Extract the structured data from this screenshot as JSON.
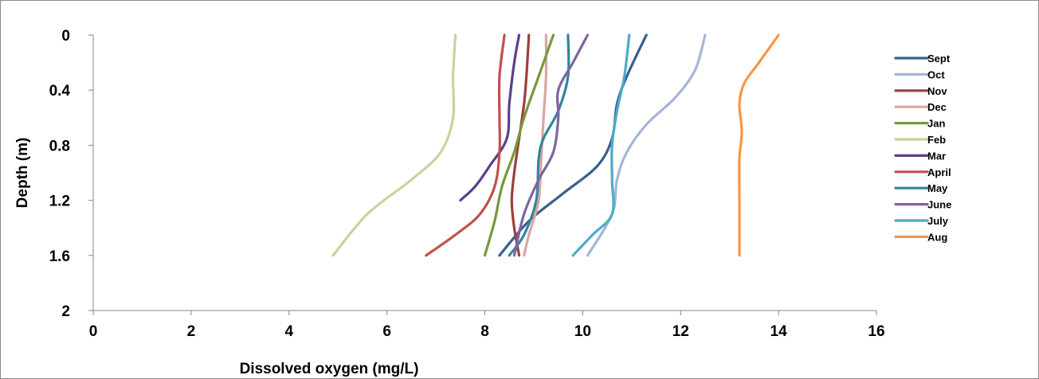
{
  "chart_data": {
    "type": "line",
    "xlabel": "Dissolved oxygen (mg/L)",
    "ylabel": "Depth (m)",
    "xlim": [
      0,
      16
    ],
    "ylim": [
      0,
      2
    ],
    "y_inverted": true,
    "x_ticks": [
      "0",
      "2",
      "4",
      "6",
      "8",
      "10",
      "12",
      "14",
      "16"
    ],
    "y_ticks": [
      "0",
      "0.4",
      "0.8",
      "1.2",
      "1.6",
      "2"
    ],
    "grid": false,
    "legend_position": "right",
    "series": [
      {
        "name": "Sept",
        "color": "#3a5f8f",
        "points": [
          [
            11.3,
            0
          ],
          [
            10.9,
            0.3
          ],
          [
            10.7,
            0.5
          ],
          [
            10.6,
            0.75
          ],
          [
            10.3,
            0.95
          ],
          [
            9.6,
            1.15
          ],
          [
            8.9,
            1.35
          ],
          [
            8.3,
            1.6
          ]
        ]
      },
      {
        "name": "Oct",
        "color": "#a3b6d6",
        "points": [
          [
            12.5,
            0
          ],
          [
            12.3,
            0.25
          ],
          [
            11.9,
            0.45
          ],
          [
            11.3,
            0.65
          ],
          [
            10.9,
            0.85
          ],
          [
            10.7,
            1.05
          ],
          [
            10.6,
            1.3
          ],
          [
            10.1,
            1.6
          ]
        ]
      },
      {
        "name": "Nov",
        "color": "#9c3f3b",
        "points": [
          [
            8.9,
            0
          ],
          [
            8.85,
            0.3
          ],
          [
            8.8,
            0.5
          ],
          [
            8.7,
            0.75
          ],
          [
            8.6,
            1.0
          ],
          [
            8.55,
            1.2
          ],
          [
            8.6,
            1.4
          ],
          [
            8.7,
            1.6
          ]
        ]
      },
      {
        "name": "Dec",
        "color": "#d9a6a3",
        "points": [
          [
            9.25,
            0
          ],
          [
            9.25,
            0.3
          ],
          [
            9.2,
            0.6
          ],
          [
            9.15,
            0.9
          ],
          [
            9.1,
            1.2
          ],
          [
            8.9,
            1.45
          ],
          [
            8.8,
            1.6
          ]
        ]
      },
      {
        "name": "Jan",
        "color": "#77983a",
        "points": [
          [
            9.4,
            0
          ],
          [
            9.1,
            0.3
          ],
          [
            8.8,
            0.6
          ],
          [
            8.6,
            0.85
          ],
          [
            8.35,
            1.1
          ],
          [
            8.2,
            1.35
          ],
          [
            8.0,
            1.6
          ]
        ]
      },
      {
        "name": "Feb",
        "color": "#c3d69b",
        "points": [
          [
            7.4,
            0
          ],
          [
            7.35,
            0.3
          ],
          [
            7.35,
            0.6
          ],
          [
            7.1,
            0.85
          ],
          [
            6.5,
            1.05
          ],
          [
            5.6,
            1.3
          ],
          [
            4.9,
            1.6
          ]
        ]
      },
      {
        "name": "Mar",
        "color": "#5b3f8a",
        "points": [
          [
            8.7,
            0
          ],
          [
            8.6,
            0.2
          ],
          [
            8.5,
            0.5
          ],
          [
            8.45,
            0.75
          ],
          [
            8.1,
            0.95
          ],
          [
            7.8,
            1.1
          ],
          [
            7.5,
            1.2
          ]
        ]
      },
      {
        "name": "April",
        "color": "#c0504d",
        "points": [
          [
            8.4,
            0
          ],
          [
            8.3,
            0.3
          ],
          [
            8.3,
            0.6
          ],
          [
            8.3,
            0.85
          ],
          [
            8.2,
            1.1
          ],
          [
            7.9,
            1.3
          ],
          [
            7.4,
            1.45
          ],
          [
            6.8,
            1.6
          ]
        ]
      },
      {
        "name": "May",
        "color": "#31859c",
        "points": [
          [
            9.7,
            0
          ],
          [
            9.7,
            0.3
          ],
          [
            9.5,
            0.55
          ],
          [
            9.2,
            0.75
          ],
          [
            9.1,
            0.9
          ],
          [
            9.05,
            1.2
          ],
          [
            8.8,
            1.45
          ],
          [
            8.5,
            1.6
          ]
        ]
      },
      {
        "name": "June",
        "color": "#8064a2",
        "points": [
          [
            10.1,
            0
          ],
          [
            9.8,
            0.2
          ],
          [
            9.5,
            0.4
          ],
          [
            9.5,
            0.6
          ],
          [
            9.4,
            0.85
          ],
          [
            9.1,
            1.05
          ],
          [
            8.8,
            1.3
          ],
          [
            8.6,
            1.6
          ]
        ]
      },
      {
        "name": "July",
        "color": "#4bacc6",
        "points": [
          [
            10.95,
            0
          ],
          [
            10.85,
            0.3
          ],
          [
            10.7,
            0.55
          ],
          [
            10.6,
            0.8
          ],
          [
            10.6,
            1.05
          ],
          [
            10.6,
            1.3
          ],
          [
            10.2,
            1.45
          ],
          [
            9.8,
            1.6
          ]
        ]
      },
      {
        "name": "Aug",
        "color": "#f79646",
        "points": [
          [
            14.0,
            0
          ],
          [
            13.6,
            0.2
          ],
          [
            13.3,
            0.35
          ],
          [
            13.2,
            0.5
          ],
          [
            13.25,
            0.7
          ],
          [
            13.2,
            0.9
          ],
          [
            13.2,
            1.2
          ],
          [
            13.2,
            1.6
          ]
        ]
      }
    ]
  }
}
